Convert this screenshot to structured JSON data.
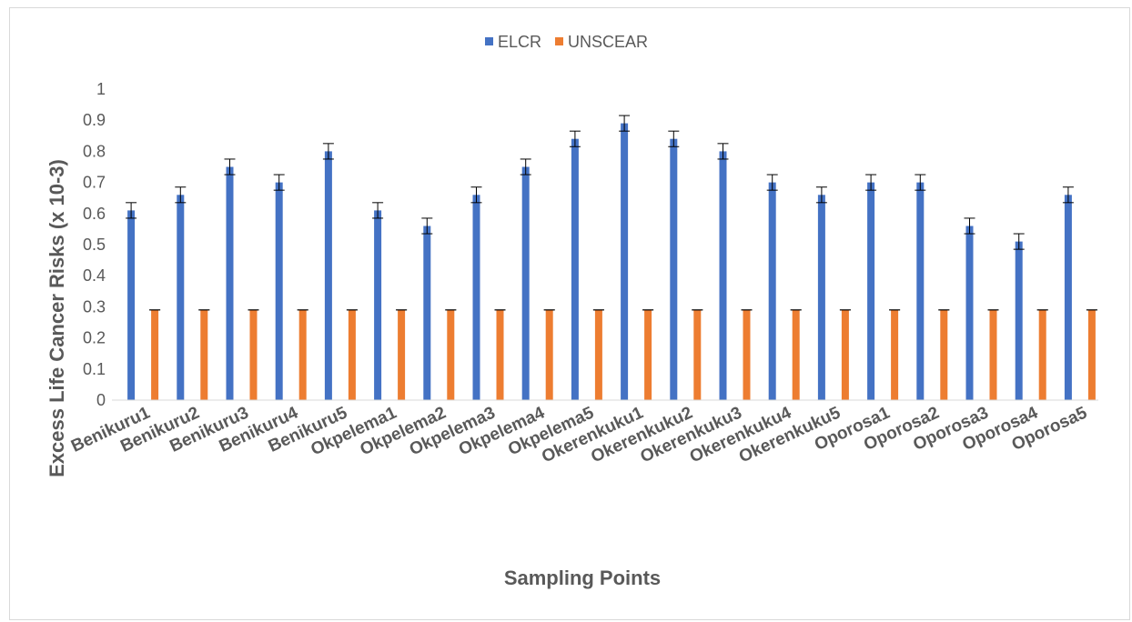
{
  "chart_data": {
    "type": "bar",
    "title": "",
    "xlabel": "Sampling Points",
    "ylabel": "Excess Life Cancer Risks (x 10-3)",
    "ylim": [
      0,
      1
    ],
    "yticks": [
      "0",
      "0.1",
      "0.2",
      "0.3",
      "0.4",
      "0.5",
      "0.6",
      "0.7",
      "0.8",
      "0.9",
      "1"
    ],
    "grid": false,
    "legend_position": "top",
    "error_bars": true,
    "categories": [
      "Benikuru1",
      "Benikuru2",
      "Benikuru3",
      "Benikuru4",
      "Benikuru5",
      "Okpelema1",
      "Okpelema2",
      "Okpelema3",
      "Okpelema4",
      "Okpelema5",
      "Okerenkuku1",
      "Okerenkuku2",
      "Okerenkuku3",
      "Okerenkuku4",
      "Okerenkuku5",
      "Oporosa1",
      "Oporosa2",
      "Oporosa3",
      "Oporosa4",
      "Oporosa5"
    ],
    "series": [
      {
        "name": "ELCR",
        "color": "#4472c4",
        "values": [
          0.61,
          0.66,
          0.75,
          0.7,
          0.8,
          0.61,
          0.56,
          0.66,
          0.75,
          0.84,
          0.89,
          0.84,
          0.8,
          0.7,
          0.66,
          0.7,
          0.7,
          0.56,
          0.51,
          0.66
        ],
        "errors": [
          0.025,
          0.025,
          0.025,
          0.025,
          0.025,
          0.025,
          0.025,
          0.025,
          0.025,
          0.025,
          0.025,
          0.025,
          0.025,
          0.025,
          0.025,
          0.025,
          0.025,
          0.025,
          0.025,
          0.025
        ]
      },
      {
        "name": "UNSCEAR",
        "color": "#ed7d31",
        "values": [
          0.29,
          0.29,
          0.29,
          0.29,
          0.29,
          0.29,
          0.29,
          0.29,
          0.29,
          0.29,
          0.29,
          0.29,
          0.29,
          0.29,
          0.29,
          0.29,
          0.29,
          0.29,
          0.29,
          0.29
        ],
        "errors": [
          0.0,
          0.0,
          0.0,
          0.0,
          0.0,
          0.0,
          0.0,
          0.0,
          0.0,
          0.0,
          0.0,
          0.0,
          0.0,
          0.0,
          0.0,
          0.0,
          0.0,
          0.0,
          0.0,
          0.0
        ]
      }
    ]
  }
}
